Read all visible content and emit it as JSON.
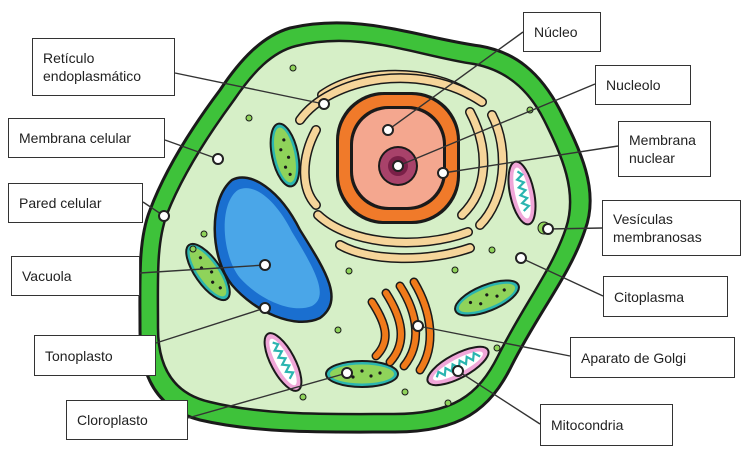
{
  "diagram": {
    "labels": {
      "reticulo": "Retículo\nendoplasmático",
      "membrana_celular": "Membrana celular",
      "pared_celular": "Pared celular",
      "vacuola": "Vacuola",
      "tonoplasto": "Tonoplasto",
      "cloroplasto": "Cloroplasto",
      "nucleo": "Núcleo",
      "nucleolo": "Nucleolo",
      "membrana_nuclear": "Membrana\nnuclear",
      "vesiculas": "Vesículas\nmembranosas",
      "citoplasma": "Citoplasma",
      "golgi": "Aparato de Golgi",
      "mitocondria": "Mitocondria"
    },
    "colors": {
      "cell_wall": "#3ec23a",
      "cell_outline": "#1a1a1a",
      "cytoplasm": "#d6efc7",
      "vacuole_fill": "#4aa6e8",
      "vacuole_membrane": "#1a6fd0",
      "nucleus_fill": "#f4a78f",
      "nuclear_membrane": "#f07a2a",
      "nucleolus": "#a8426a",
      "er": "#f6d59a",
      "golgi": "#f07a1a",
      "chloroplast": "#8fd35a",
      "mitochondria_outer": "#f0a6d8",
      "mitochondria_inner": "#2bb5b0"
    }
  }
}
